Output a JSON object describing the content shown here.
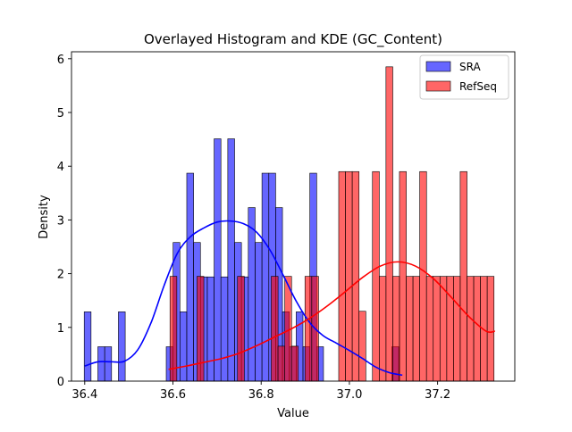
{
  "chart_data": {
    "type": "histogram",
    "title": "Overlayed Histogram and KDE (GC_Content)",
    "xlabel": "Value",
    "ylabel": "Density",
    "xlim": [
      36.37,
      37.375
    ],
    "ylim": [
      0,
      6.13
    ],
    "xticks": [
      36.4,
      36.6,
      36.8,
      37.0,
      37.2
    ],
    "xtick_labels": [
      "36.4",
      "36.6",
      "36.8",
      "37.0",
      "37.2"
    ],
    "yticks": [
      0,
      1,
      2,
      3,
      4,
      5,
      6
    ],
    "ytick_labels": [
      "0",
      "1",
      "2",
      "3",
      "4",
      "5",
      "6"
    ],
    "grid": false,
    "legend_position": "top-right",
    "bin_width": 0.0155,
    "series": [
      {
        "name": "SRA",
        "color": "#0000ff",
        "bar_left_edges": [
          36.3988,
          36.4143,
          36.4298,
          36.4453,
          36.4608,
          36.4763,
          36.4918,
          36.5073,
          36.5228,
          36.5383,
          36.5538,
          36.5693,
          36.5848,
          36.6003,
          36.6158,
          36.6313,
          36.6468,
          36.6623,
          36.6778,
          36.6933,
          36.7088,
          36.7243,
          36.7398,
          36.7553,
          36.7708,
          36.7863,
          36.8018,
          36.8173,
          36.8328,
          36.8483,
          36.8638,
          36.8793,
          36.8948,
          36.9103,
          36.9258,
          36.9413,
          36.9568,
          36.9723,
          36.9878,
          37.0033,
          37.0188,
          37.0343,
          37.0498,
          37.0653,
          37.0808,
          37.0963
        ],
        "density": [
          1.29,
          0,
          0.64,
          0.64,
          0,
          1.29,
          0,
          0,
          0,
          0,
          0,
          0,
          0.64,
          2.58,
          1.29,
          3.87,
          2.58,
          1.94,
          1.94,
          4.51,
          1.94,
          4.51,
          2.58,
          1.94,
          3.23,
          2.58,
          3.87,
          3.87,
          3.23,
          1.29,
          0.64,
          1.29,
          0.64,
          3.87,
          0.64,
          0,
          0,
          0,
          0,
          0,
          0,
          0,
          0,
          0,
          0,
          0.64
        ],
        "kde_x": [
          36.4,
          36.43,
          36.46,
          36.49,
          36.52,
          36.55,
          36.58,
          36.61,
          36.64,
          36.67,
          36.7,
          36.73,
          36.76,
          36.79,
          36.82,
          36.85,
          36.88,
          36.91,
          36.94,
          36.97,
          37.0,
          37.03,
          37.06,
          37.09,
          37.12
        ],
        "kde_y": [
          0.28,
          0.36,
          0.36,
          0.37,
          0.58,
          1.08,
          1.78,
          2.38,
          2.69,
          2.85,
          2.96,
          2.98,
          2.93,
          2.77,
          2.44,
          1.97,
          1.48,
          1.09,
          0.85,
          0.71,
          0.57,
          0.42,
          0.26,
          0.16,
          0.11
        ]
      },
      {
        "name": "RefSeq",
        "color": "#ff0000",
        "bar_left_edges": [
          36.5933,
          36.6086,
          36.6239,
          36.6392,
          36.6545,
          36.6698,
          36.6851,
          36.7004,
          36.7157,
          36.731,
          36.7463,
          36.7616,
          36.7769,
          36.7922,
          36.8075,
          36.8228,
          36.8381,
          36.8534,
          36.8687,
          36.884,
          36.8993,
          36.9146,
          36.9299,
          36.9452,
          36.9605,
          36.9758,
          36.9911,
          37.0064,
          37.0217,
          37.037,
          37.0523,
          37.0676,
          37.0829,
          37.0982,
          37.1135,
          37.1288,
          37.1441,
          37.1594,
          37.1747,
          37.19,
          37.2053,
          37.2206,
          37.2359,
          37.2512,
          37.2665,
          37.2818,
          37.2971,
          37.3124
        ],
        "density": [
          1.95,
          0,
          0,
          0,
          1.95,
          0,
          0,
          0,
          0,
          0,
          1.95,
          0,
          0,
          0,
          0,
          1.95,
          0.65,
          1.95,
          0.65,
          0,
          1.95,
          1.95,
          0,
          0,
          0,
          3.9,
          3.9,
          3.9,
          1.3,
          0,
          3.9,
          1.95,
          5.85,
          1.95,
          3.9,
          1.95,
          1.95,
          3.9,
          1.95,
          1.95,
          1.95,
          1.95,
          1.95,
          3.9,
          1.95,
          1.95,
          1.95,
          1.95
        ],
        "kde_x": [
          36.59,
          36.63,
          36.67,
          36.71,
          36.75,
          36.79,
          36.83,
          36.87,
          36.91,
          36.95,
          36.99,
          37.03,
          37.07,
          37.11,
          37.15,
          37.19,
          37.23,
          37.27,
          37.31,
          37.33
        ],
        "kde_y": [
          0.22,
          0.28,
          0.35,
          0.42,
          0.52,
          0.66,
          0.82,
          0.98,
          1.17,
          1.4,
          1.66,
          1.93,
          2.14,
          2.22,
          2.14,
          1.91,
          1.57,
          1.21,
          0.93,
          0.93
        ]
      }
    ]
  }
}
